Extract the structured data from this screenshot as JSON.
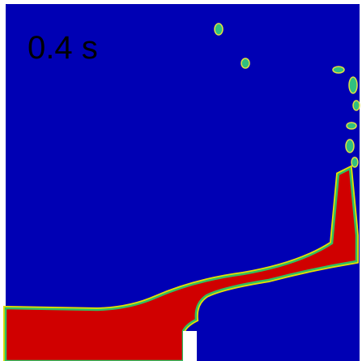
{
  "label": "0.4 s"
}
